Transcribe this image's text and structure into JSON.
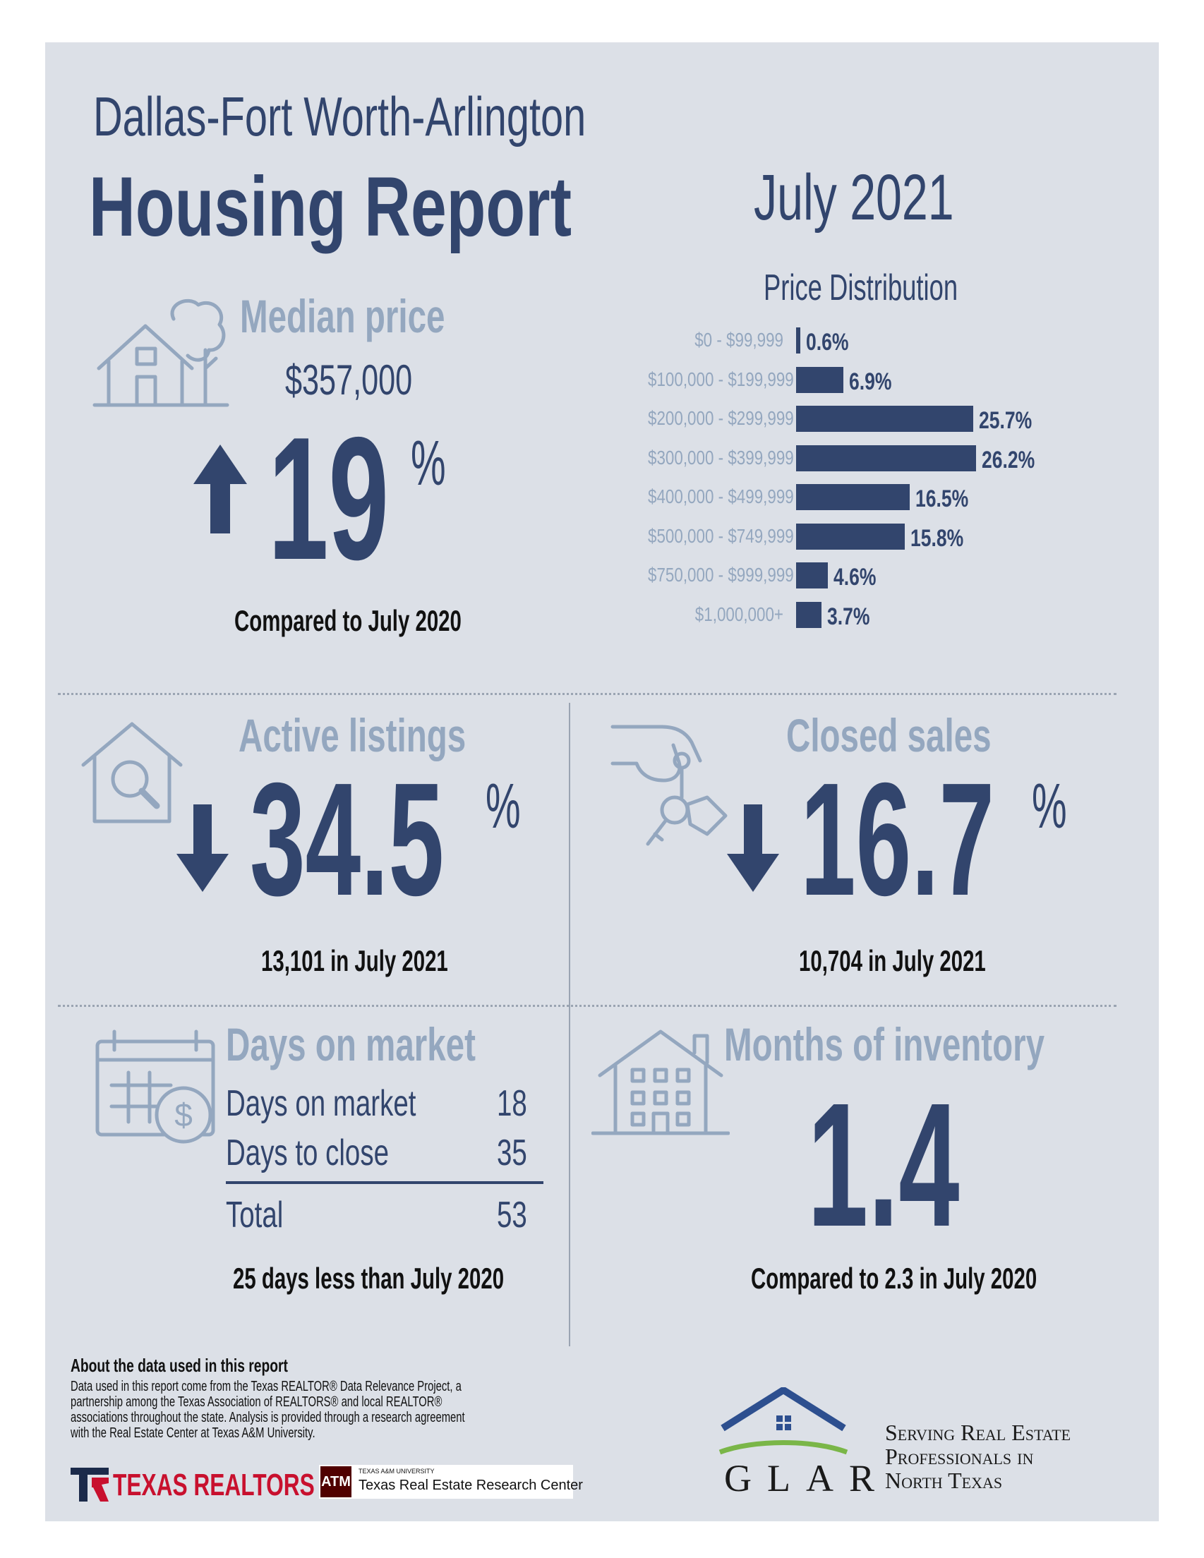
{
  "header": {
    "region": "Dallas-Fort Worth-Arlington",
    "title": "Housing Report",
    "period": "July 2021"
  },
  "median_price": {
    "heading": "Median price",
    "value": "$357,000",
    "change": "19",
    "percent": "%",
    "direction": "up",
    "caption": "Compared to July 2020"
  },
  "chart_data": {
    "type": "bar",
    "title": "Price Distribution",
    "orientation": "horizontal",
    "categories": [
      "$0 - $99,999",
      "$100,000 - $199,999",
      "$200,000 - $299,999",
      "$300,000 - $399,999",
      "$400,000 - $499,999",
      "$500,000 - $749,999",
      "$750,000 - $999,999",
      "$1,000,000+"
    ],
    "values": [
      0.6,
      6.9,
      25.7,
      26.2,
      16.5,
      15.8,
      4.6,
      3.7
    ],
    "value_labels": [
      "0.6%",
      "6.9%",
      "25.7%",
      "26.2%",
      "16.5%",
      "15.8%",
      "4.6%",
      "3.7%"
    ],
    "color": "#32456d"
  },
  "active_listings": {
    "heading": "Active listings",
    "change": "34.5",
    "percent": "%",
    "direction": "down",
    "caption": "13,101 in July 2021"
  },
  "closed_sales": {
    "heading": "Closed sales",
    "change": "16.7",
    "percent": "%",
    "direction": "down",
    "caption": "10,704 in July 2021"
  },
  "days_on_market": {
    "heading": "Days on market",
    "rows": [
      {
        "label": "Days on market",
        "value": "18"
      },
      {
        "label": "Days to close",
        "value": "35"
      }
    ],
    "total_label": "Total",
    "total_value": "53",
    "caption": "25 days less than July 2020"
  },
  "months_inventory": {
    "heading": "Months of inventory",
    "value": "1.4",
    "caption": "Compared to 2.3 in July 2020"
  },
  "footer": {
    "about_title": "About the data used in this report",
    "about_lines": [
      "Data used in this report come from the Texas REALTOR® Data Relevance Project, a",
      "partnership among the Texas Association of REALTORS® and local REALTOR®",
      "associations throughout the state. Analysis is provided through a research agreement",
      "with the Real Estate Center at Texas A&M University."
    ],
    "texas_realtors": "TEXAS REALTORS",
    "tamu_small": "TEXAS A&M UNIVERSITY",
    "tamu_center": "Texas Real Estate Research Center",
    "glar": "GLAR",
    "tagline": [
      "Serving Real Estate",
      "Professionals in",
      "North Texas"
    ]
  },
  "colors": {
    "background": "#dce0e7",
    "navy": "#32456d",
    "grey": "#94a7bf",
    "glar_green": "#7ab648",
    "tr_red": "#c8102e"
  },
  "icons": [
    "house-tree-icon",
    "up-arrow-icon",
    "house-search-icon",
    "down-arrow-icon",
    "hand-key-icon",
    "calendar-dollar-icon",
    "apartment-house-icon"
  ]
}
